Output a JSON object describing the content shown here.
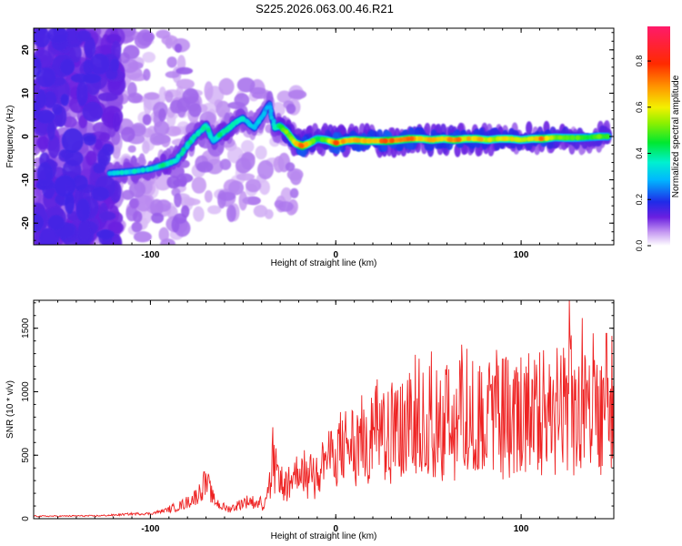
{
  "title": "S225.2026.063.00.46.R21",
  "chart_data": [
    {
      "type": "heatmap",
      "xlabel": "Height of straight line (km)",
      "ylabel": "Frequency (Hz)",
      "xlim": [
        -163,
        150
      ],
      "ylim": [
        -25,
        25
      ],
      "xticks": [
        -100,
        0,
        100
      ],
      "xtick_labels": [
        "-100",
        "0",
        "100"
      ],
      "yticks": [
        20,
        10,
        0,
        -10,
        -20
      ],
      "ytick_labels": [
        "20",
        "10",
        "0",
        "-10",
        "-20"
      ],
      "ridge": [
        {
          "x": -122,
          "y": -8.5,
          "a": 0.35
        },
        {
          "x": -115,
          "y": -8.3,
          "a": 0.4
        },
        {
          "x": -108,
          "y": -8.0,
          "a": 0.4
        },
        {
          "x": -100,
          "y": -7.5,
          "a": 0.4
        },
        {
          "x": -92,
          "y": -6.5,
          "a": 0.45
        },
        {
          "x": -86,
          "y": -5.5,
          "a": 0.4
        },
        {
          "x": -80,
          "y": -2.0,
          "a": 0.45
        },
        {
          "x": -75,
          "y": 0.5,
          "a": 0.4
        },
        {
          "x": -70,
          "y": 2.5,
          "a": 0.45
        },
        {
          "x": -66,
          "y": -1.0,
          "a": 0.4
        },
        {
          "x": -62,
          "y": 0.5,
          "a": 0.45
        },
        {
          "x": -58,
          "y": 1.8,
          "a": 0.45
        },
        {
          "x": -54,
          "y": 3.2,
          "a": 0.4
        },
        {
          "x": -50,
          "y": 4.2,
          "a": 0.4
        },
        {
          "x": -44,
          "y": 2.0,
          "a": 0.35
        },
        {
          "x": -40,
          "y": 4.5,
          "a": 0.35
        },
        {
          "x": -36,
          "y": 7.5,
          "a": 0.3
        },
        {
          "x": -33,
          "y": 2.0,
          "a": 0.4
        },
        {
          "x": -30,
          "y": 2.5,
          "a": 0.45
        },
        {
          "x": -26,
          "y": 0.8,
          "a": 0.6
        },
        {
          "x": -22,
          "y": -1.5,
          "a": 0.7
        },
        {
          "x": -18,
          "y": -2.2,
          "a": 0.85
        },
        {
          "x": -14,
          "y": -1.5,
          "a": 0.6
        },
        {
          "x": -10,
          "y": -0.5,
          "a": 0.5
        },
        {
          "x": -5,
          "y": -0.8,
          "a": 0.6
        },
        {
          "x": 0,
          "y": -1.5,
          "a": 0.85
        },
        {
          "x": 5,
          "y": -1.0,
          "a": 0.7
        },
        {
          "x": 10,
          "y": -0.8,
          "a": 0.75
        },
        {
          "x": 16,
          "y": -1.0,
          "a": 0.8
        },
        {
          "x": 22,
          "y": -1.0,
          "a": 0.7
        },
        {
          "x": 28,
          "y": -1.0,
          "a": 0.85
        },
        {
          "x": 34,
          "y": -0.8,
          "a": 0.75
        },
        {
          "x": 40,
          "y": -0.5,
          "a": 0.8
        },
        {
          "x": 46,
          "y": -0.5,
          "a": 0.7
        },
        {
          "x": 52,
          "y": -0.8,
          "a": 0.75
        },
        {
          "x": 58,
          "y": -0.5,
          "a": 0.7
        },
        {
          "x": 64,
          "y": -0.8,
          "a": 0.8
        },
        {
          "x": 70,
          "y": -0.5,
          "a": 0.7
        },
        {
          "x": 76,
          "y": -0.5,
          "a": 0.75
        },
        {
          "x": 82,
          "y": -0.8,
          "a": 0.65
        },
        {
          "x": 88,
          "y": -0.5,
          "a": 0.65
        },
        {
          "x": 94,
          "y": -0.5,
          "a": 0.7
        },
        {
          "x": 100,
          "y": -0.8,
          "a": 0.6
        },
        {
          "x": 106,
          "y": -0.5,
          "a": 0.65
        },
        {
          "x": 112,
          "y": -0.5,
          "a": 0.8
        },
        {
          "x": 118,
          "y": -0.2,
          "a": 0.55
        },
        {
          "x": 124,
          "y": -0.3,
          "a": 0.6
        },
        {
          "x": 130,
          "y": -0.3,
          "a": 0.55
        },
        {
          "x": 136,
          "y": -0.2,
          "a": 0.5
        },
        {
          "x": 142,
          "y": 0.0,
          "a": 0.55
        },
        {
          "x": 148,
          "y": 0.0,
          "a": 0.5
        }
      ]
    },
    {
      "type": "colorbar",
      "label": "Normalized spectral amplitude",
      "range": [
        0,
        0.95
      ],
      "ticks": [
        0.0,
        0.2,
        0.4,
        0.6,
        0.8
      ],
      "tick_labels": [
        "0.0",
        "0.2",
        "0.4",
        "0.6",
        "0.8"
      ]
    },
    {
      "type": "line",
      "xlabel": "Height of straight line (km)",
      "ylabel": "SNR (10 * v/v)",
      "xlim": [
        -163,
        150
      ],
      "ylim": [
        0,
        1720
      ],
      "xticks": [
        -100,
        0,
        100
      ],
      "xtick_labels": [
        "-100",
        "0",
        "100"
      ],
      "yticks": [
        0,
        500,
        1000,
        1500
      ],
      "ytick_labels": [
        "0",
        "500",
        "1000",
        "1500"
      ],
      "color": "#ee2222",
      "series": [
        {
          "name": "SNR",
          "x": [
            -163,
            -150,
            -140,
            -130,
            -120,
            -110,
            -100,
            -95,
            -90,
            -85,
            -80,
            -75,
            -72,
            -69,
            -66,
            -62,
            -58,
            -54,
            -50,
            -46,
            -43,
            -40,
            -37,
            -35,
            -34,
            -33,
            -31,
            -29,
            -27,
            -25,
            -22,
            -18,
            -15,
            -10,
            -5,
            0,
            5,
            10,
            15,
            20,
            25,
            30,
            35,
            40,
            45,
            50,
            55,
            60,
            65,
            70,
            75,
            80,
            85,
            90,
            95,
            100,
            105,
            110,
            115,
            120,
            125,
            127,
            130,
            135,
            140,
            145,
            150
          ],
          "envelope": [
            20,
            20,
            22,
            22,
            28,
            38,
            40,
            55,
            75,
            95,
            130,
            180,
            240,
            270,
            150,
            100,
            75,
            95,
            130,
            140,
            120,
            130,
            210,
            330,
            520,
            420,
            360,
            300,
            290,
            295,
            360,
            400,
            390,
            420,
            480,
            540,
            580,
            600,
            640,
            660,
            680,
            700,
            760,
            800,
            820,
            820,
            830,
            840,
            830,
            820,
            810,
            800,
            810,
            820,
            820,
            800,
            810,
            820,
            800,
            830,
            860,
            900,
            830,
            800,
            790,
            780,
            770
          ],
          "peaks": [
            {
              "x": -71,
              "y": 370
            },
            {
              "x": -34,
              "y": 720
            },
            {
              "x": 15,
              "y": 860
            },
            {
              "x": 35,
              "y": 1040
            },
            {
              "x": 47,
              "y": 1150
            },
            {
              "x": 60,
              "y": 1210
            },
            {
              "x": 68,
              "y": 1370
            },
            {
              "x": 83,
              "y": 1230
            },
            {
              "x": 97,
              "y": 1140
            },
            {
              "x": 110,
              "y": 1310
            },
            {
              "x": 116,
              "y": 1120
            },
            {
              "x": 126,
              "y": 1720
            },
            {
              "x": 133,
              "y": 1580
            },
            {
              "x": 139,
              "y": 1460
            },
            {
              "x": 146,
              "y": 1460
            },
            {
              "x": 149,
              "y": 1440
            }
          ]
        }
      ]
    }
  ]
}
